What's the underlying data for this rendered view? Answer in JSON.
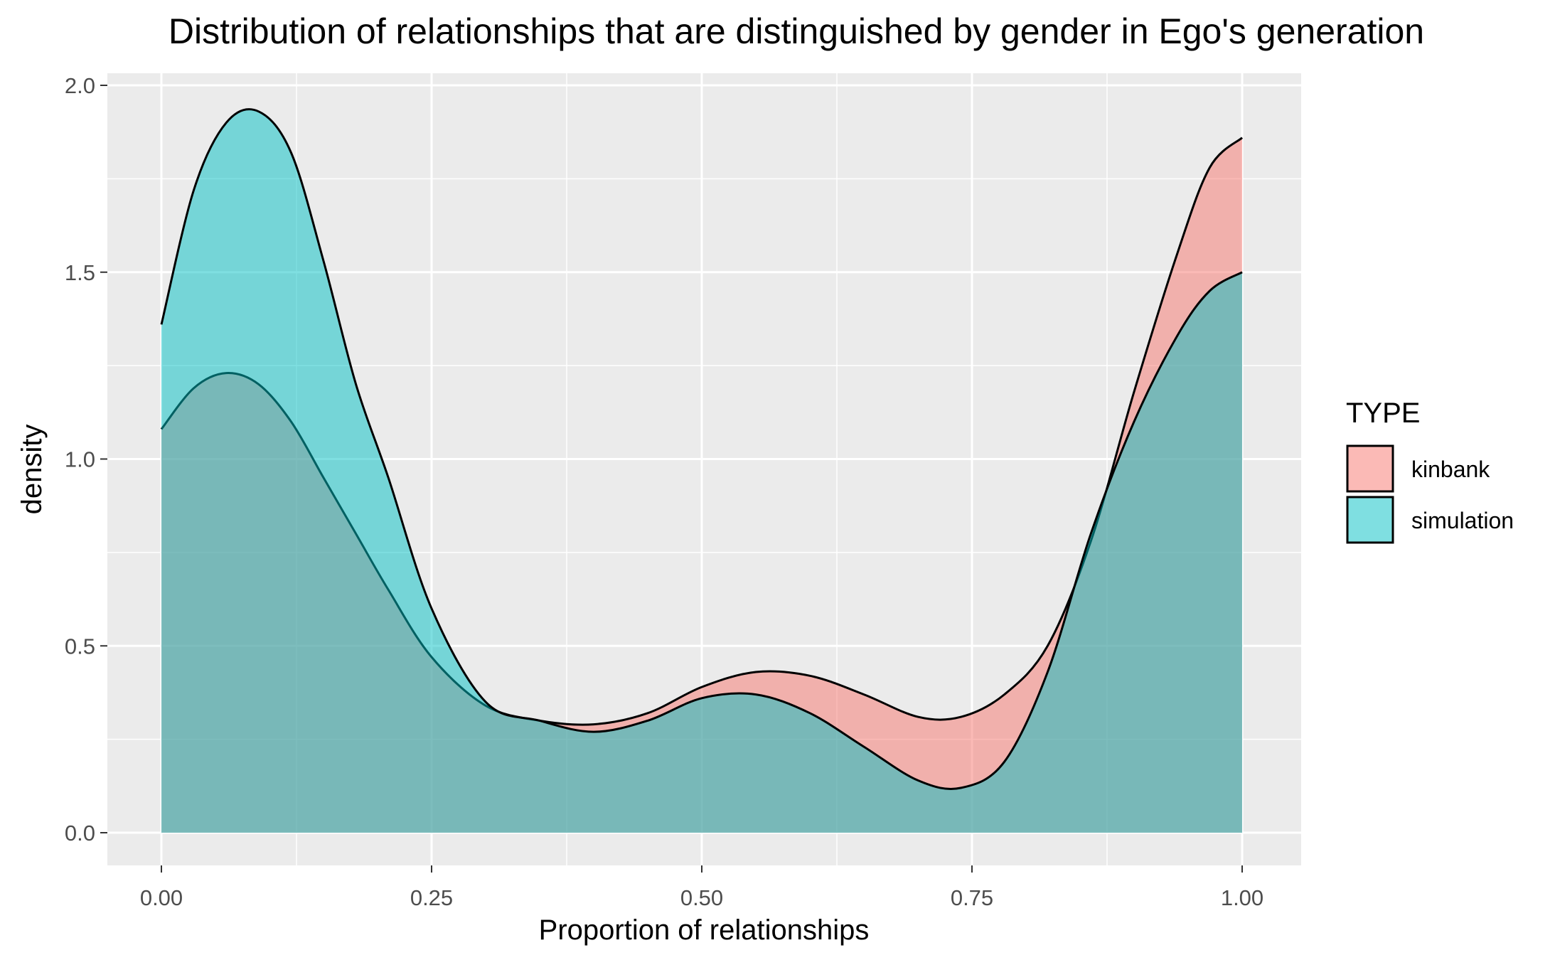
{
  "chart_data": {
    "type": "area",
    "subtype": "density",
    "title": "Distribution of relationships that are distinguished by gender in Ego's generation",
    "xlabel": "Proportion of relationships",
    "ylabel": "density",
    "xlim": [
      0.0,
      1.0
    ],
    "ylim": [
      0.0,
      2.0
    ],
    "x_ticks": [
      "0.00",
      "0.25",
      "0.50",
      "0.75",
      "1.00"
    ],
    "x_tick_values": [
      0.0,
      0.25,
      0.5,
      0.75,
      1.0
    ],
    "y_ticks": [
      "0.0",
      "0.5",
      "1.0",
      "1.5",
      "2.0"
    ],
    "y_tick_values": [
      0.0,
      0.5,
      1.0,
      1.5,
      2.0
    ],
    "grid": true,
    "legend_position": "right",
    "legend": {
      "title": "TYPE",
      "entries": [
        "kinbank",
        "simulation"
      ]
    },
    "series": [
      {
        "name": "kinbank",
        "color": "#F8766D",
        "x": [
          0.0,
          0.03,
          0.06,
          0.09,
          0.12,
          0.15,
          0.18,
          0.21,
          0.25,
          0.3,
          0.35,
          0.4,
          0.45,
          0.5,
          0.55,
          0.6,
          0.65,
          0.7,
          0.74,
          0.78,
          0.82,
          0.86,
          0.9,
          0.94,
          0.97,
          1.0
        ],
        "values": [
          1.08,
          1.19,
          1.23,
          1.2,
          1.1,
          0.95,
          0.8,
          0.65,
          0.47,
          0.34,
          0.3,
          0.29,
          0.32,
          0.39,
          0.43,
          0.42,
          0.37,
          0.31,
          0.31,
          0.37,
          0.5,
          0.78,
          1.18,
          1.55,
          1.78,
          1.86
        ]
      },
      {
        "name": "simulation",
        "color": "#00BFC4",
        "x": [
          0.0,
          0.03,
          0.06,
          0.09,
          0.12,
          0.15,
          0.18,
          0.21,
          0.25,
          0.3,
          0.35,
          0.4,
          0.45,
          0.5,
          0.55,
          0.6,
          0.65,
          0.7,
          0.74,
          0.78,
          0.82,
          0.86,
          0.9,
          0.94,
          0.97,
          1.0
        ],
        "values": [
          1.36,
          1.72,
          1.9,
          1.93,
          1.82,
          1.53,
          1.2,
          0.95,
          0.6,
          0.35,
          0.3,
          0.27,
          0.3,
          0.36,
          0.37,
          0.32,
          0.23,
          0.14,
          0.12,
          0.19,
          0.43,
          0.8,
          1.1,
          1.33,
          1.45,
          1.5
        ]
      }
    ]
  }
}
